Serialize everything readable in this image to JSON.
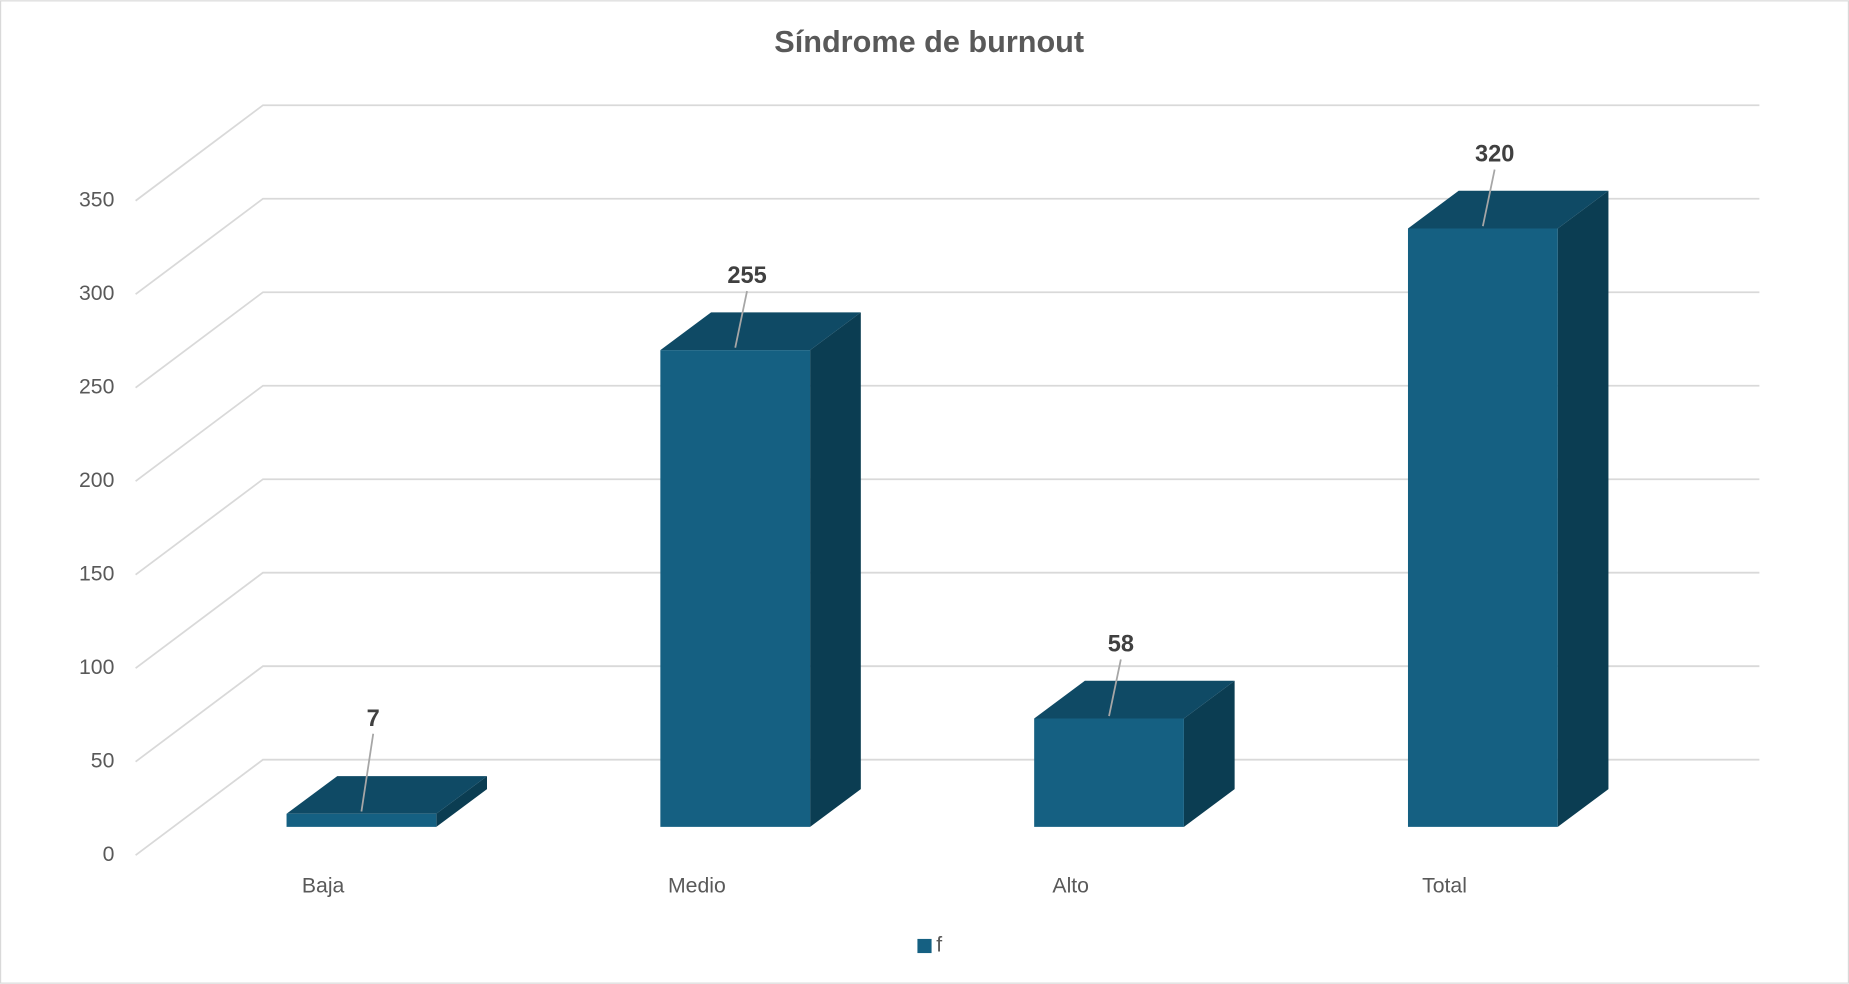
{
  "chart_data": {
    "type": "bar",
    "title": "Síndrome de burnout",
    "categories": [
      "Baja",
      "Medio",
      "Alto",
      "Total"
    ],
    "series": [
      {
        "name": "f",
        "color": "#156082",
        "values": [
          7,
          255,
          58,
          320
        ]
      }
    ],
    "ylim": [
      0,
      350
    ],
    "yticks": [
      0,
      50,
      100,
      150,
      200,
      250,
      300,
      350
    ],
    "grid": true,
    "legend": "bottom"
  }
}
